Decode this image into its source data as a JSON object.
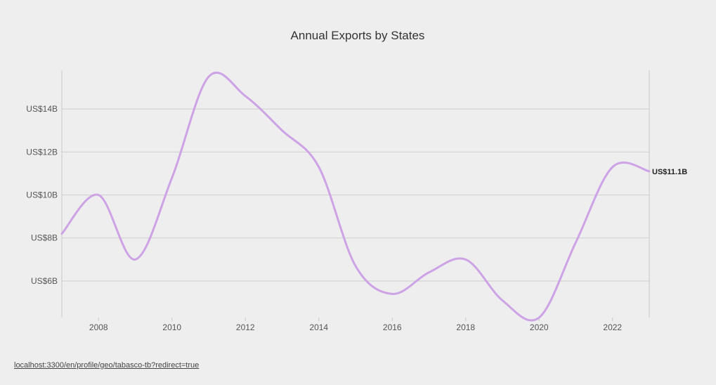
{
  "chart_data": {
    "type": "line",
    "title": "Annual Exports by States",
    "xlabel": "",
    "ylabel": "",
    "x": [
      2007,
      2008,
      2009,
      2010,
      2011,
      2012,
      2013,
      2014,
      2015,
      2016,
      2017,
      2018,
      2019,
      2020,
      2021,
      2022,
      2023
    ],
    "x_tick_labels": [
      "2008",
      "2010",
      "2012",
      "2014",
      "2016",
      "2018",
      "2020",
      "2022"
    ],
    "x_ticks": [
      2008,
      2010,
      2012,
      2014,
      2016,
      2018,
      2020,
      2022
    ],
    "y_tick_labels": [
      "US$6B",
      "US$8B",
      "US$10B",
      "US$12B",
      "US$14B"
    ],
    "y_ticks": [
      6,
      8,
      10,
      12,
      14
    ],
    "xlim": [
      2007,
      2023
    ],
    "ylim": [
      4.3,
      15.8
    ],
    "series": [
      {
        "values": [
          8.2,
          10.0,
          7.0,
          10.8,
          15.5,
          14.6,
          13.0,
          11.3,
          6.7,
          5.4,
          6.4,
          7.0,
          5.1,
          4.3,
          7.8,
          11.3,
          11.1
        ],
        "color": "#cda3e6"
      }
    ],
    "end_label": "US$11.1B",
    "grid": true
  },
  "footer": {
    "link_text": "localhost:3300/en/profile/geo/tabasco-tb?redirect=true"
  }
}
